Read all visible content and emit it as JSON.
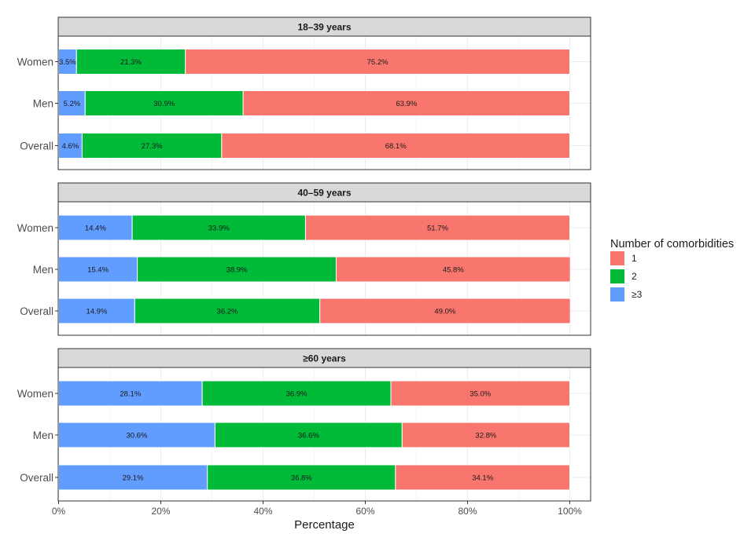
{
  "chart_data": {
    "type": "bar",
    "orientation": "horizontal",
    "stacked": true,
    "xlabel": "Percentage",
    "xlim": [
      0,
      100
    ],
    "xticks": [
      "0%",
      "20%",
      "40%",
      "60%",
      "80%",
      "100%"
    ],
    "grid": true,
    "legend": {
      "title": "Number of comorbidities",
      "placement": "right",
      "entries": [
        {
          "label": "1",
          "color": "#F8766D"
        },
        {
          "label": "2",
          "color": "#00BA38"
        },
        {
          "label": "≥3",
          "color": "#619CFF"
        }
      ]
    },
    "panels": [
      {
        "title": "18–39 years",
        "categories": [
          "Women",
          "Men",
          "Overall"
        ],
        "series": [
          {
            "name": "≥3",
            "color": "#619CFF",
            "values": [
              3.5,
              5.2,
              4.6
            ],
            "labels": [
              "3.5%",
              "5.2%",
              "4.6%"
            ]
          },
          {
            "name": "2",
            "color": "#00BA38",
            "values": [
              21.3,
              30.9,
              27.3
            ],
            "labels": [
              "21.3%",
              "30.9%",
              "27.3%"
            ]
          },
          {
            "name": "1",
            "color": "#F8766D",
            "values": [
              75.2,
              63.9,
              68.1
            ],
            "labels": [
              "75.2%",
              "63.9%",
              "68.1%"
            ]
          }
        ]
      },
      {
        "title": "40–59 years",
        "categories": [
          "Women",
          "Men",
          "Overall"
        ],
        "series": [
          {
            "name": "≥3",
            "color": "#619CFF",
            "values": [
              14.4,
              15.4,
              14.9
            ],
            "labels": [
              "14.4%",
              "15.4%",
              "14.9%"
            ]
          },
          {
            "name": "2",
            "color": "#00BA38",
            "values": [
              33.9,
              38.9,
              36.2
            ],
            "labels": [
              "33.9%",
              "38.9%",
              "36.2%"
            ]
          },
          {
            "name": "1",
            "color": "#F8766D",
            "values": [
              51.7,
              45.8,
              49.0
            ],
            "labels": [
              "51.7%",
              "45.8%",
              "49.0%"
            ]
          }
        ]
      },
      {
        "title": "≥60 years",
        "categories": [
          "Women",
          "Men",
          "Overall"
        ],
        "series": [
          {
            "name": "≥3",
            "color": "#619CFF",
            "values": [
              28.1,
              30.6,
              29.1
            ],
            "labels": [
              "28.1%",
              "30.6%",
              "29.1%"
            ]
          },
          {
            "name": "2",
            "color": "#00BA38",
            "values": [
              36.9,
              36.6,
              36.8
            ],
            "labels": [
              "36.9%",
              "36.6%",
              "36.8%"
            ]
          },
          {
            "name": "1",
            "color": "#F8766D",
            "values": [
              35.0,
              32.8,
              34.1
            ],
            "labels": [
              "35.0%",
              "32.8%",
              "34.1%"
            ]
          }
        ]
      }
    ]
  }
}
